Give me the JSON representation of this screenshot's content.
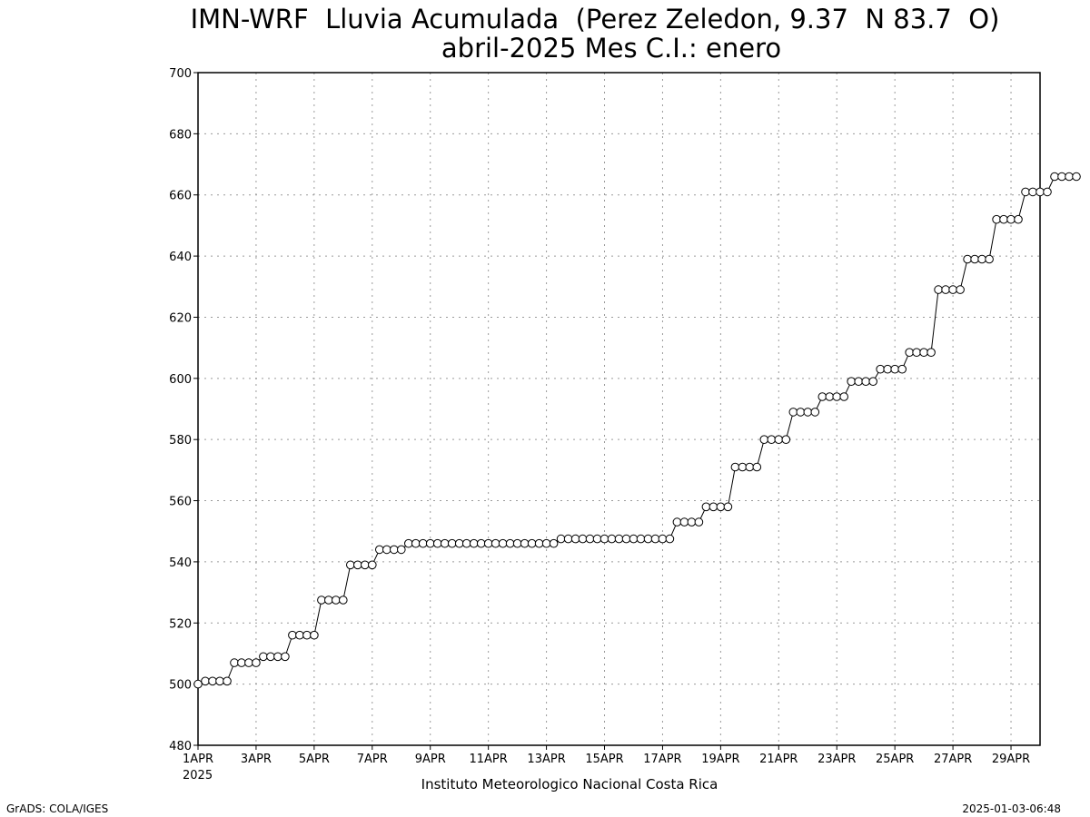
{
  "title_line1": "IMN-WRF  Lluvia Acumulada  (Perez Zeledon, 9.37  N 83.7  O)",
  "title_line2": "abril-2025 Mes C.I.: enero",
  "institution": "Instituto Meteorologico Nacional Costa Rica",
  "credit_left": "GrADS: COLA/IGES",
  "credit_right": "2025-01-03-06:48",
  "year_label": "2025",
  "chart_data": {
    "type": "line",
    "title": "IMN-WRF  Lluvia Acumulada  (Perez Zeledon, 9.37  N 83.7  O) abril-2025 Mes C.I.: enero",
    "xlabel": "",
    "ylabel": "",
    "x_unit": "day of April 2025 (1.0 = 1APR 00Z), 6-hourly",
    "xlim": [
      1,
      30
    ],
    "ylim": [
      480,
      700
    ],
    "grid": true,
    "y_ticks": [
      480,
      500,
      520,
      540,
      560,
      580,
      600,
      620,
      640,
      660,
      680,
      700
    ],
    "x_ticks": [
      {
        "x": 1,
        "label": "1APR"
      },
      {
        "x": 3,
        "label": "3APR"
      },
      {
        "x": 5,
        "label": "5APR"
      },
      {
        "x": 7,
        "label": "7APR"
      },
      {
        "x": 9,
        "label": "9APR"
      },
      {
        "x": 11,
        "label": "11APR"
      },
      {
        "x": 13,
        "label": "13APR"
      },
      {
        "x": 15,
        "label": "15APR"
      },
      {
        "x": 17,
        "label": "17APR"
      },
      {
        "x": 19,
        "label": "19APR"
      },
      {
        "x": 21,
        "label": "21APR"
      },
      {
        "x": 23,
        "label": "23APR"
      },
      {
        "x": 25,
        "label": "25APR"
      },
      {
        "x": 27,
        "label": "27APR"
      },
      {
        "x": 29,
        "label": "29APR"
      }
    ],
    "series": [
      {
        "name": "",
        "marker": "open-circle",
        "values": [
          500,
          501,
          501,
          501,
          501,
          507,
          507,
          507,
          507,
          509,
          509,
          509,
          509,
          516,
          516,
          516,
          516,
          527.5,
          527.5,
          527.5,
          527.5,
          539,
          539,
          539,
          539,
          544,
          544,
          544,
          544,
          546,
          546,
          546,
          546,
          546,
          546,
          546,
          546,
          546,
          546,
          546,
          546,
          546,
          546,
          546,
          546,
          546,
          546,
          546,
          546,
          546,
          547.5,
          547.5,
          547.5,
          547.5,
          547.5,
          547.5,
          547.5,
          547.5,
          547.5,
          547.5,
          547.5,
          547.5,
          547.5,
          547.5,
          547.5,
          547.5,
          553,
          553,
          553,
          553,
          558,
          558,
          558,
          558,
          571,
          571,
          571,
          571,
          580,
          580,
          580,
          580,
          589,
          589,
          589,
          589,
          594,
          594,
          594,
          594,
          599,
          599,
          599,
          599,
          603,
          603,
          603,
          603,
          608.5,
          608.5,
          608.5,
          608.5,
          629,
          629,
          629,
          629,
          639,
          639,
          639,
          639,
          652,
          652,
          652,
          652,
          661,
          661,
          661,
          661,
          666,
          666,
          666,
          666
        ]
      }
    ]
  }
}
